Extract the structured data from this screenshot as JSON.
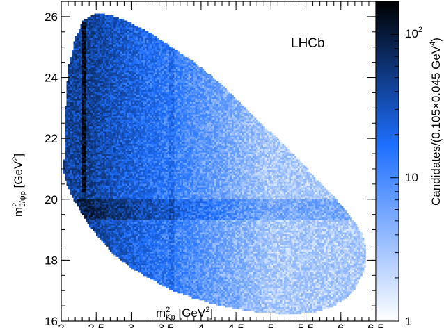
{
  "chart_data": {
    "type": "heatmap",
    "title": "",
    "annotation": "LHCb",
    "x_axis": {
      "label_base": "m",
      "label_sup": "2",
      "label_sub": "Kp",
      "label_unit_open": " [GeV",
      "label_unit_sup": "2",
      "label_unit_close": "]",
      "range": [
        2.0,
        6.5
      ],
      "ticks": [
        2,
        2.5,
        3,
        3.5,
        4,
        4.5,
        5,
        5.5,
        6,
        6.5
      ],
      "tick_labels": [
        "2",
        "2.5",
        "3",
        "3.5",
        "4",
        "4.5",
        "5",
        "5.5",
        "6",
        "6.5"
      ]
    },
    "y_axis": {
      "label_base": "m",
      "label_sup": "2",
      "label_sub": "J/ψp",
      "label_unit_open": " [GeV",
      "label_unit_sup": "2",
      "label_unit_close": "]",
      "range": [
        16.0,
        26.5
      ],
      "ticks": [
        16,
        18,
        20,
        22,
        24,
        26
      ],
      "tick_labels": [
        "16",
        "18",
        "20",
        "22",
        "24",
        "26"
      ]
    },
    "color_axis": {
      "label_main": "Candidates/(0.105×0.045 GeV",
      "label_sup": "4",
      "label_close": ")",
      "scale": "log",
      "range": [
        1,
        170
      ],
      "ticks": [
        1,
        10,
        100
      ],
      "tick_label_1": "1",
      "tick_label_10": "10",
      "tick_label_100_base": "10",
      "tick_label_100_sup": "2",
      "colors": [
        "#ffffff",
        "#1e6fff",
        "#000000"
      ]
    },
    "dalitz_boundary": {
      "x": [
        2.033,
        2.06,
        2.1,
        2.2,
        2.32,
        2.5,
        2.7,
        2.95,
        3.25,
        3.55,
        3.9,
        4.25,
        4.6,
        4.95,
        5.3,
        5.6,
        5.9,
        6.15,
        6.3,
        6.36,
        6.36,
        6.3,
        6.2,
        6.05,
        5.85,
        5.65,
        5.4,
        5.1,
        4.8,
        4.5,
        4.2,
        3.9,
        3.6,
        3.3,
        3.0,
        2.75,
        2.55,
        2.38,
        2.25,
        2.15,
        2.08,
        2.04,
        2.033
      ],
      "y": [
        21.0,
        23.0,
        24.3,
        25.3,
        25.9,
        26.1,
        26.05,
        25.85,
        25.5,
        25.05,
        24.5,
        23.85,
        23.1,
        22.3,
        21.55,
        20.8,
        20.1,
        19.4,
        18.9,
        18.4,
        17.9,
        17.5,
        17.05,
        16.7,
        16.45,
        16.3,
        16.25,
        16.25,
        16.3,
        16.4,
        16.55,
        16.75,
        17.0,
        17.35,
        17.75,
        18.2,
        18.7,
        19.2,
        19.7,
        20.1,
        20.5,
        20.8,
        21.0
      ]
    },
    "features": {
      "vertical_band_x": [
        2.3,
        2.34
      ],
      "vertical_band_y": [
        20.2,
        25.8
      ],
      "vertical_band_peak": 170,
      "horizontal_band_y": [
        19.3,
        20.0
      ],
      "horizontal_band_peak": 25,
      "faint_band_x": [
        3.55,
        3.62
      ],
      "low_mass_x": [
        2.05,
        2.3
      ],
      "low_mass_peak": 50,
      "falloff_x": [
        2.3,
        5.0
      ],
      "falloff_end": 3
    }
  }
}
